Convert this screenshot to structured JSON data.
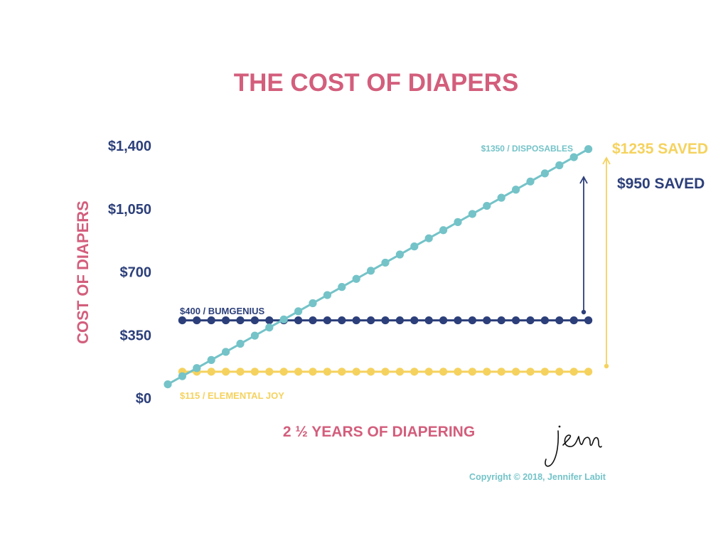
{
  "colors": {
    "pink": "#D35E7C",
    "navy": "#2C3F7A",
    "teal": "#74C3C8",
    "yellow": "#F5D25E",
    "background": "#FFFFFF"
  },
  "chart_data": {
    "type": "line",
    "title": "THE COST OF DIAPERS",
    "xlabel": "2 ½ YEARS OF DIAPERING",
    "ylabel": "COST OF DIAPERS",
    "ylim": [
      0,
      1400
    ],
    "yticks": [
      0,
      350,
      700,
      1050,
      1400
    ],
    "ytick_labels": [
      "$0",
      "$350",
      "$700",
      "$1,050",
      "$1,400"
    ],
    "grid": false,
    "legend": "none",
    "x": [
      1,
      2,
      3,
      4,
      5,
      6,
      7,
      8,
      9,
      10,
      11,
      12,
      13,
      14,
      15,
      16,
      17,
      18,
      19,
      20,
      21,
      22,
      23,
      24,
      25,
      26,
      27,
      28,
      29,
      30
    ],
    "series": [
      {
        "color": "#74C3C8",
        "label": "$1350 / DISPOSABLES",
        "values": [
          45,
          90,
          135,
          180,
          225,
          270,
          315,
          360,
          405,
          450,
          495,
          540,
          585,
          630,
          675,
          720,
          765,
          810,
          855,
          900,
          945,
          990,
          1035,
          1080,
          1125,
          1170,
          1215,
          1260,
          1305,
          1350
        ]
      },
      {
        "color": "#2C3F7A",
        "label": "$400 / BUMGENIUS",
        "values": [
          null,
          400,
          400,
          400,
          400,
          400,
          400,
          400,
          400,
          400,
          400,
          400,
          400,
          400,
          400,
          400,
          400,
          400,
          400,
          400,
          400,
          400,
          400,
          400,
          400,
          400,
          400,
          400,
          400,
          400
        ]
      },
      {
        "color": "#F5D25E",
        "label": "$115 / ELEMENTAL JOY",
        "values": [
          null,
          115,
          115,
          115,
          115,
          115,
          115,
          115,
          115,
          115,
          115,
          115,
          115,
          115,
          115,
          115,
          115,
          115,
          115,
          115,
          115,
          115,
          115,
          115,
          115,
          115,
          115,
          115,
          115,
          115
        ]
      }
    ],
    "annotations": [
      {
        "text": "$1235 SAVED",
        "color": "#F5D25E",
        "from": 115,
        "to": 1350
      },
      {
        "text": "$950 SAVED",
        "color": "#2C3F7A",
        "from": 400,
        "to": 1350
      }
    ]
  },
  "signature": "jenn",
  "copyright": "Copyright © 2018, Jennifer Labit"
}
